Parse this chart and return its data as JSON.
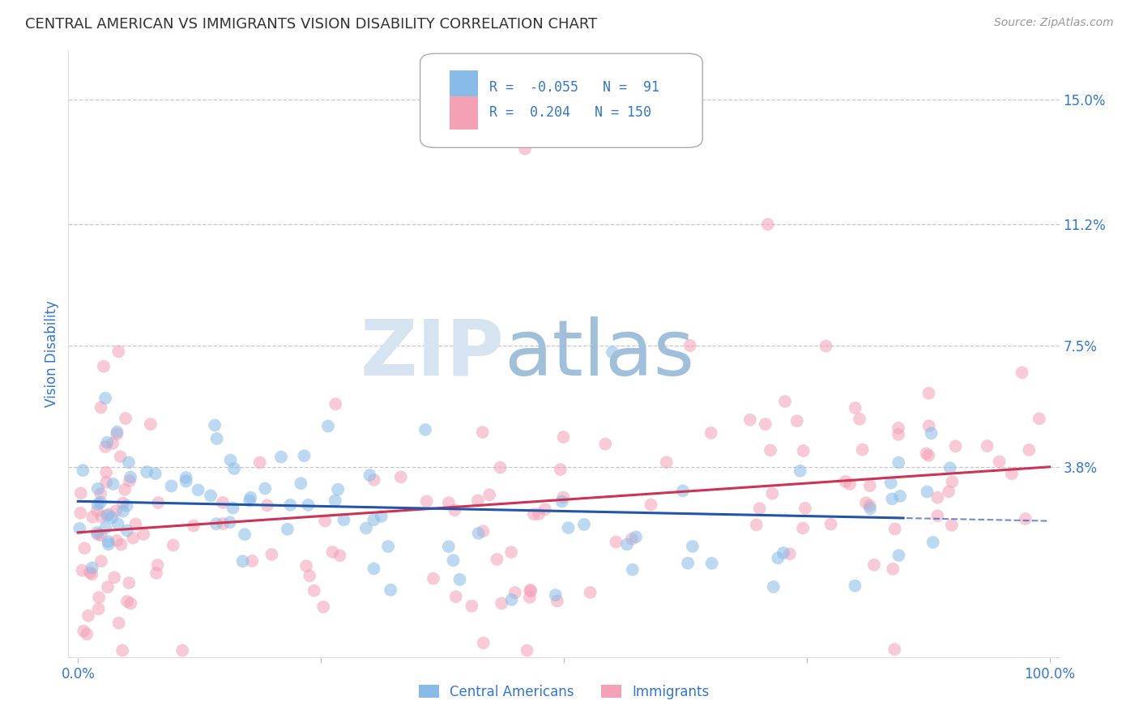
{
  "title": "CENTRAL AMERICAN VS IMMIGRANTS VISION DISABILITY CORRELATION CHART",
  "source": "Source: ZipAtlas.com",
  "ylabel": "Vision Disability",
  "xlim": [
    -1,
    101
  ],
  "ylim": [
    -2.0,
    16.5
  ],
  "gridline_y": [
    3.8,
    7.5,
    11.2,
    15.0
  ],
  "ytick_labels": [
    "3.8%",
    "7.5%",
    "11.2%",
    "15.0%"
  ],
  "xtick_positions": [
    0,
    25,
    50,
    75,
    100
  ],
  "xtick_labels": [
    "0.0%",
    "",
    "",
    "",
    "100.0%"
  ],
  "blue_color": "#88BBE8",
  "pink_color": "#F4A0B5",
  "blue_line_color": "#2255AA",
  "pink_line_color": "#CC3355",
  "title_color": "#333333",
  "axis_label_color": "#3377CC",
  "source_color": "#999999",
  "background_color": "#FFFFFF",
  "blue_R": -0.055,
  "blue_N": 91,
  "pink_R": 0.204,
  "pink_N": 150,
  "blue_intercept": 2.75,
  "blue_slope": -0.006,
  "pink_intercept": 1.8,
  "pink_slope": 0.02,
  "blue_solid_end": 85,
  "marker_size": 130,
  "marker_alpha": 0.55
}
